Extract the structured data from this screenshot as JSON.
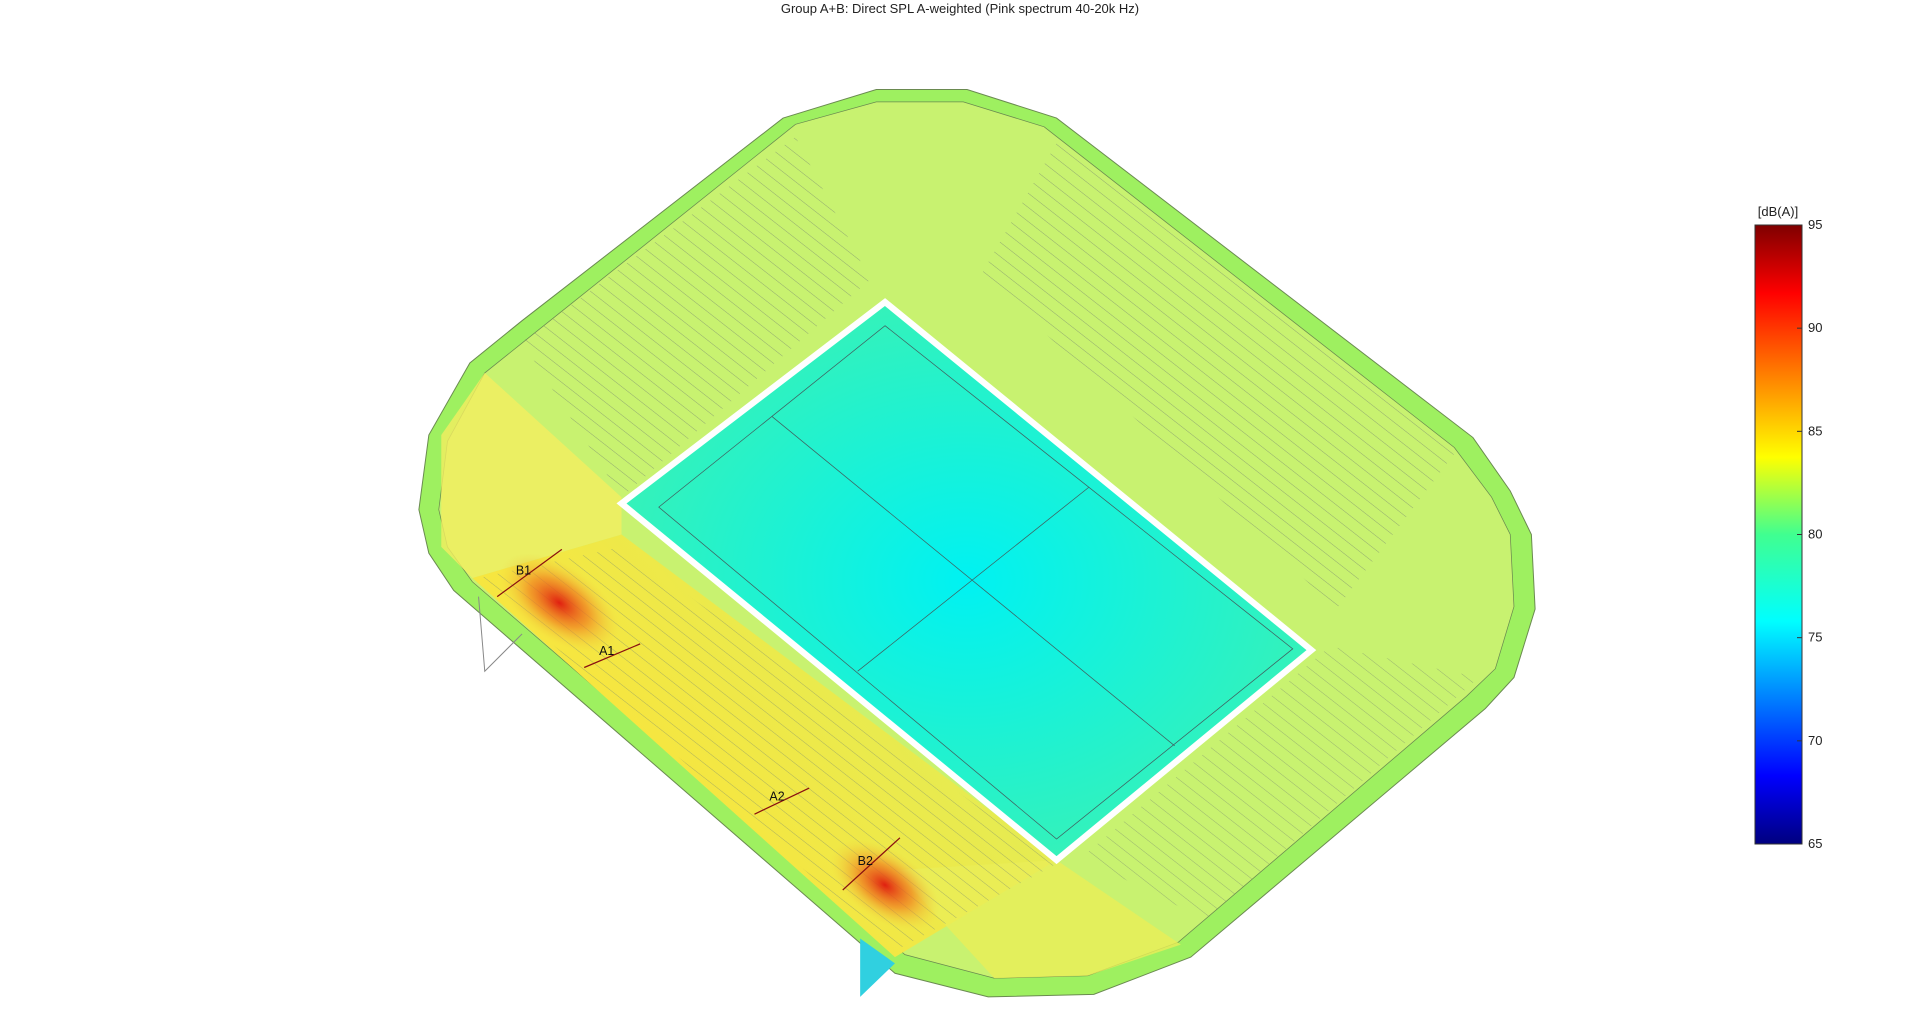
{
  "title": "Group A+B: Direct SPL A-weighted (Pink spectrum 40-20k Hz)",
  "colorbar": {
    "label": "[dB(A)]",
    "lim": [
      65,
      95
    ],
    "ticks": [
      65,
      70,
      75,
      80,
      85,
      90,
      95
    ]
  },
  "speakers": [
    "B1",
    "A1",
    "A2",
    "B2"
  ]
}
